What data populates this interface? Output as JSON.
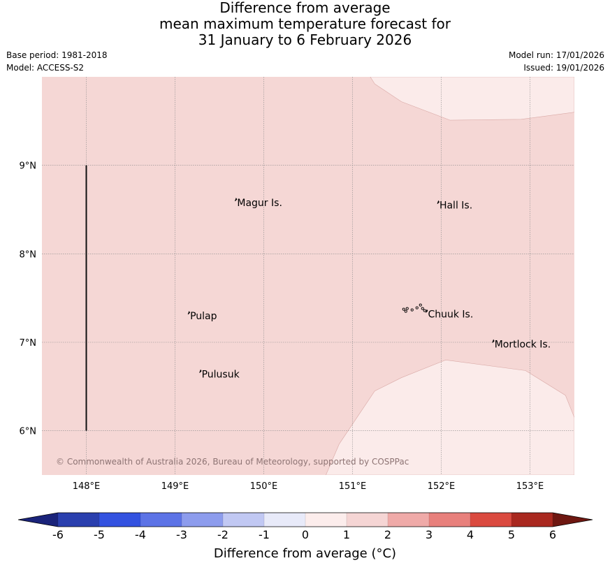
{
  "title": {
    "line1": "Difference from average",
    "line2": "mean maximum temperature forecast for",
    "line3": "31 January to 6 February 2026"
  },
  "meta": {
    "base_period": "Base period: 1981-2018",
    "model": "Model: ACCESS-S2",
    "model_run": "Model run: 17/01/2026",
    "issued": "Issued: 19/01/2026"
  },
  "map": {
    "lon_range": [
      147.5,
      153.5
    ],
    "lat_range": [
      5.5,
      10.0
    ],
    "lon_ticks": [
      148,
      149,
      150,
      151,
      152,
      153
    ],
    "lon_tick_labels": [
      "148°E",
      "149°E",
      "150°E",
      "151°E",
      "152°E",
      "153°E"
    ],
    "lat_ticks": [
      6,
      7,
      8,
      9
    ],
    "lat_tick_labels": [
      "6°N",
      "7°N",
      "8°N",
      "9°N"
    ],
    "background_fill": "#f5d7d5",
    "contour_fill": "#fbebea",
    "contour_regions": [
      {
        "name": "north-east-cooler-region",
        "points": [
          [
            151.2,
            10.0
          ],
          [
            151.25,
            9.92
          ],
          [
            151.55,
            9.72
          ],
          [
            152.1,
            9.51
          ],
          [
            152.9,
            9.52
          ],
          [
            153.5,
            9.6
          ],
          [
            153.5,
            10.0
          ]
        ]
      },
      {
        "name": "south-east-cooler-region",
        "points": [
          [
            150.7,
            5.5
          ],
          [
            150.85,
            5.85
          ],
          [
            151.25,
            6.45
          ],
          [
            151.55,
            6.6
          ],
          [
            152.05,
            6.8
          ],
          [
            152.95,
            6.68
          ],
          [
            153.4,
            6.4
          ],
          [
            153.5,
            6.15
          ],
          [
            153.5,
            5.5
          ]
        ]
      }
    ],
    "boundary_line": {
      "lon": 148.0,
      "lat_from": 6.0,
      "lat_to": 9.0
    },
    "places": [
      {
        "name": "Magur Is.",
        "lon": 149.7,
        "lat": 8.58
      },
      {
        "name": "Hall Is.",
        "lon": 151.98,
        "lat": 8.55
      },
      {
        "name": "Pulap",
        "lon": 149.17,
        "lat": 7.3
      },
      {
        "name": "Chuuk Is.",
        "lon": 151.85,
        "lat": 7.32
      },
      {
        "name": "Mortlock Is.",
        "lon": 152.6,
        "lat": 6.98
      },
      {
        "name": "Pulusuk",
        "lon": 149.3,
        "lat": 6.64
      }
    ],
    "copyright": "© Commonwealth of Australia 2026, Bureau of Meteorology, supported by COSPPac"
  },
  "colorbar": {
    "ticks": [
      "-6",
      "-5",
      "-4",
      "-3",
      "-2",
      "-1",
      "0",
      "1",
      "2",
      "3",
      "4",
      "5",
      "6"
    ],
    "colors": [
      "#2a3fae",
      "#3352e0",
      "#5c73e6",
      "#8d9ced",
      "#c1c8f3",
      "#e8eaf9",
      "#fcedec",
      "#f5d5d4",
      "#efaaa8",
      "#e8807c",
      "#da4a3f",
      "#a9281f"
    ],
    "under_color": "#1a237a",
    "over_color": "#6e1711",
    "label": "Difference from average (°C)"
  }
}
